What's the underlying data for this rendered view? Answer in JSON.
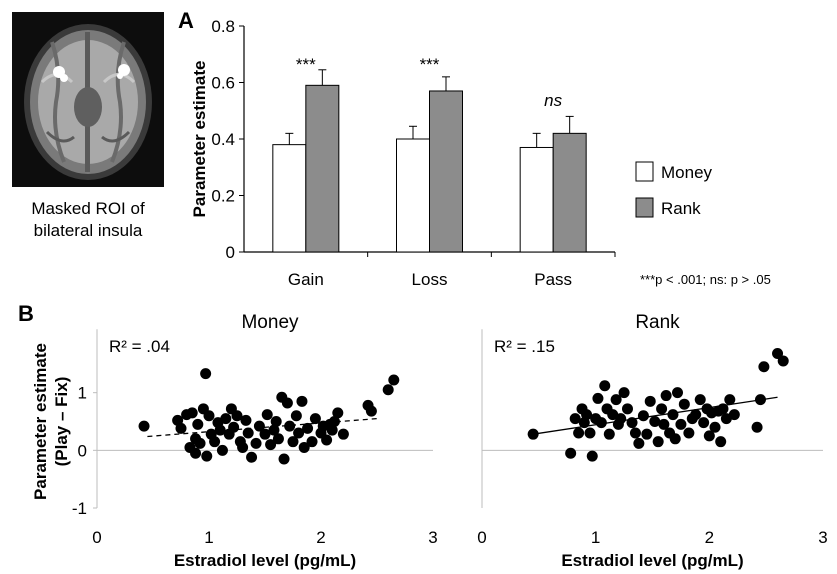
{
  "brain": {
    "caption_line1": "Masked ROI of",
    "caption_line2": "bilateral insula"
  },
  "panel_a": {
    "letter": "A",
    "legend": [
      {
        "label": "Money",
        "color": "#ffffff"
      },
      {
        "label": "Rank",
        "color": "#8c8c8c"
      }
    ],
    "footnote": "***p < .001;  ns: p > .05",
    "significance": [
      "***",
      "***",
      "ns"
    ]
  },
  "panel_b": {
    "letter": "B"
  },
  "chart_data": [
    {
      "type": "bar",
      "ylabel": "Parameter estimate",
      "categories": [
        "Gain",
        "Loss",
        "Pass"
      ],
      "ylim": [
        0,
        0.8
      ],
      "yticks": [
        "0",
        "0.2",
        "0.4",
        "0.6",
        "0.8"
      ],
      "series": [
        {
          "name": "Money",
          "values": [
            0.38,
            0.4,
            0.37
          ],
          "errors": [
            0.04,
            0.045,
            0.05
          ],
          "color": "#ffffff"
        },
        {
          "name": "Rank",
          "values": [
            0.59,
            0.57,
            0.42
          ],
          "errors": [
            0.055,
            0.05,
            0.06
          ],
          "color": "#8c8c8c"
        }
      ]
    },
    {
      "type": "scatter",
      "title": "Money",
      "annotation": "R² = .04",
      "xlabel": "Estradiol level (pg/mL)",
      "ylabel_line1": "Parameter estimate",
      "ylabel_line2": "(Play – Fix)",
      "xlim": [
        0,
        3
      ],
      "ylim": [
        -1,
        2
      ],
      "xticks": [
        "0",
        "1",
        "2",
        "3"
      ],
      "yticks": [
        "-1",
        "0",
        "1"
      ],
      "trend": {
        "x1": 0.45,
        "y1": 0.24,
        "x2": 2.5,
        "y2": 0.55,
        "style": "dashed"
      },
      "points": [
        [
          0.42,
          0.42
        ],
        [
          0.72,
          0.52
        ],
        [
          0.75,
          0.38
        ],
        [
          0.8,
          0.62
        ],
        [
          0.83,
          0.05
        ],
        [
          0.85,
          0.65
        ],
        [
          0.88,
          0.2
        ],
        [
          0.88,
          -0.05
        ],
        [
          0.9,
          0.45
        ],
        [
          0.92,
          0.12
        ],
        [
          0.95,
          0.72
        ],
        [
          0.97,
          1.33
        ],
        [
          0.98,
          -0.1
        ],
        [
          1.0,
          0.6
        ],
        [
          1.02,
          0.28
        ],
        [
          1.05,
          0.15
        ],
        [
          1.08,
          0.48
        ],
        [
          1.1,
          0.35
        ],
        [
          1.12,
          0.0
        ],
        [
          1.15,
          0.55
        ],
        [
          1.18,
          0.28
        ],
        [
          1.2,
          0.72
        ],
        [
          1.22,
          0.4
        ],
        [
          1.25,
          0.6
        ],
        [
          1.28,
          0.15
        ],
        [
          1.3,
          0.05
        ],
        [
          1.33,
          0.52
        ],
        [
          1.35,
          0.3
        ],
        [
          1.38,
          -0.12
        ],
        [
          1.42,
          0.12
        ],
        [
          1.45,
          0.42
        ],
        [
          1.5,
          0.28
        ],
        [
          1.52,
          0.62
        ],
        [
          1.55,
          0.1
        ],
        [
          1.58,
          0.35
        ],
        [
          1.6,
          0.5
        ],
        [
          1.62,
          0.2
        ],
        [
          1.65,
          0.92
        ],
        [
          1.67,
          -0.15
        ],
        [
          1.7,
          0.82
        ],
        [
          1.72,
          0.42
        ],
        [
          1.75,
          0.15
        ],
        [
          1.78,
          0.6
        ],
        [
          1.8,
          0.3
        ],
        [
          1.83,
          0.85
        ],
        [
          1.85,
          0.05
        ],
        [
          1.88,
          0.38
        ],
        [
          1.92,
          0.15
        ],
        [
          1.95,
          0.55
        ],
        [
          2.0,
          0.3
        ],
        [
          2.02,
          0.42
        ],
        [
          2.05,
          0.18
        ],
        [
          2.08,
          0.45
        ],
        [
          2.1,
          0.35
        ],
        [
          2.12,
          0.5
        ],
        [
          2.15,
          0.65
        ],
        [
          2.2,
          0.28
        ],
        [
          2.42,
          0.78
        ],
        [
          2.45,
          0.68
        ],
        [
          2.6,
          1.05
        ],
        [
          2.65,
          1.22
        ]
      ]
    },
    {
      "type": "scatter",
      "title": "Rank",
      "annotation": "R² = .15",
      "xlabel": "Estradiol level (pg/mL)",
      "xlim": [
        0,
        3
      ],
      "ylim": [
        -1,
        2
      ],
      "xticks": [
        "0",
        "1",
        "2",
        "3"
      ],
      "trend": {
        "x1": 0.45,
        "y1": 0.28,
        "x2": 2.6,
        "y2": 0.92,
        "style": "solid"
      },
      "points": [
        [
          0.45,
          0.28
        ],
        [
          0.78,
          -0.05
        ],
        [
          0.82,
          0.55
        ],
        [
          0.85,
          0.3
        ],
        [
          0.88,
          0.72
        ],
        [
          0.9,
          0.48
        ],
        [
          0.92,
          0.62
        ],
        [
          0.95,
          0.3
        ],
        [
          0.97,
          -0.1
        ],
        [
          1.0,
          0.55
        ],
        [
          1.02,
          0.9
        ],
        [
          1.05,
          0.48
        ],
        [
          1.08,
          1.12
        ],
        [
          1.1,
          0.72
        ],
        [
          1.12,
          0.28
        ],
        [
          1.15,
          0.62
        ],
        [
          1.18,
          0.88
        ],
        [
          1.2,
          0.45
        ],
        [
          1.22,
          0.55
        ],
        [
          1.25,
          1.0
        ],
        [
          1.28,
          0.72
        ],
        [
          1.32,
          0.48
        ],
        [
          1.35,
          0.3
        ],
        [
          1.38,
          0.12
        ],
        [
          1.42,
          0.6
        ],
        [
          1.45,
          0.28
        ],
        [
          1.48,
          0.85
        ],
        [
          1.52,
          0.5
        ],
        [
          1.55,
          0.15
        ],
        [
          1.58,
          0.72
        ],
        [
          1.6,
          0.45
        ],
        [
          1.62,
          0.95
        ],
        [
          1.65,
          0.3
        ],
        [
          1.68,
          0.62
        ],
        [
          1.7,
          0.2
        ],
        [
          1.72,
          1.0
        ],
        [
          1.75,
          0.45
        ],
        [
          1.78,
          0.8
        ],
        [
          1.82,
          0.3
        ],
        [
          1.85,
          0.55
        ],
        [
          1.88,
          0.62
        ],
        [
          1.92,
          0.88
        ],
        [
          1.95,
          0.48
        ],
        [
          1.98,
          0.72
        ],
        [
          2.0,
          0.25
        ],
        [
          2.02,
          0.65
        ],
        [
          2.05,
          0.4
        ],
        [
          2.08,
          0.68
        ],
        [
          2.1,
          0.15
        ],
        [
          2.12,
          0.72
        ],
        [
          2.15,
          0.55
        ],
        [
          2.18,
          0.88
        ],
        [
          2.22,
          0.62
        ],
        [
          2.42,
          0.4
        ],
        [
          2.45,
          0.88
        ],
        [
          2.48,
          1.45
        ],
        [
          2.6,
          1.68
        ],
        [
          2.65,
          1.55
        ]
      ]
    }
  ]
}
